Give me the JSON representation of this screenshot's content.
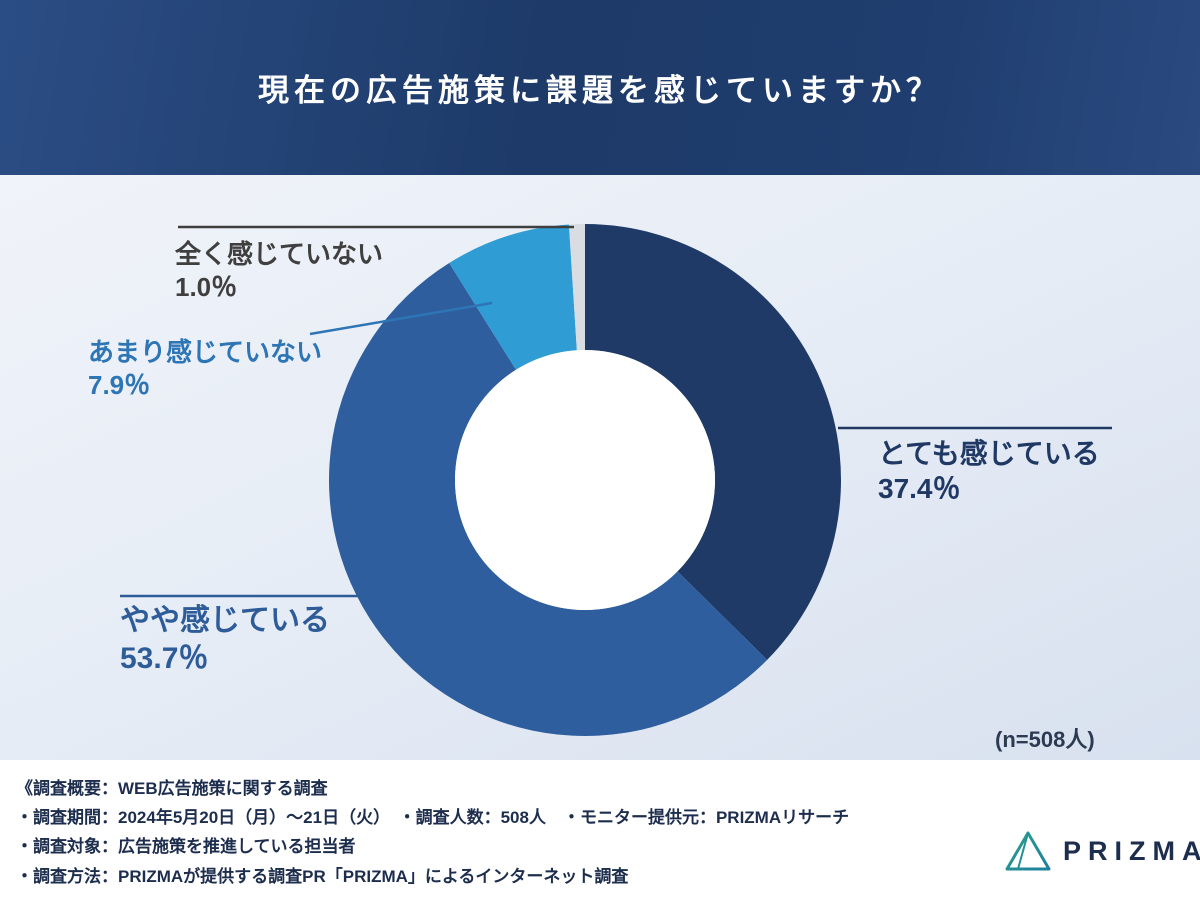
{
  "header": {
    "title": "現在の広告施策に課題を感じていますか？"
  },
  "chart_data": {
    "type": "pie",
    "donut": true,
    "title": "現在の広告施策に課題を感じていますか？",
    "start_angle_deg": 0,
    "direction": "clockwise",
    "n": 508,
    "sample_label": "(n=508人)",
    "hole_color": "#ffffff",
    "segments": [
      {
        "label": "とても感じている",
        "value": 37.4,
        "pct_label": "37.4％",
        "color": "#1f3a66",
        "label_color": "#1f3864"
      },
      {
        "label": "やや感じている",
        "value": 53.7,
        "pct_label": "53.7％",
        "color": "#2f5e9e",
        "label_color": "#2e5c99"
      },
      {
        "label": "あまり感じていない",
        "value": 7.9,
        "pct_label": "7.9％",
        "color": "#2f9cd4",
        "label_color": "#2e75b6"
      },
      {
        "label": "全く感じていない",
        "value": 1.0,
        "pct_label": "1.0％",
        "color": "#d9dde2",
        "label_color": "#3f3f3f"
      }
    ]
  },
  "survey_overview": {
    "line1": "《調査概要：WEB広告施策に関する調査",
    "line2": "・調査期間：2024年5月20日（月）〜21日（火）　・調査人数：508人　・モニター提供元：PRIZMAリサーチ",
    "line3": "・調査対象：広告施策を推進している担当者",
    "line4": "・調査方法：PRIZMAが提供する調査PR「PRIZMA」によるインターネット調査"
  },
  "logo": {
    "text": "PRIZMA"
  },
  "colors": {
    "header_bg": "#1d3a68",
    "main_bg": "#e7edf6",
    "note_text": "#2c3a52",
    "footer_text": "#1d2d4d",
    "logo_text": "#1d2d4d",
    "logo_accent_1": "#2aa189",
    "logo_accent_2": "#1f7f9f",
    "zen_line": "#3f3f3f"
  }
}
